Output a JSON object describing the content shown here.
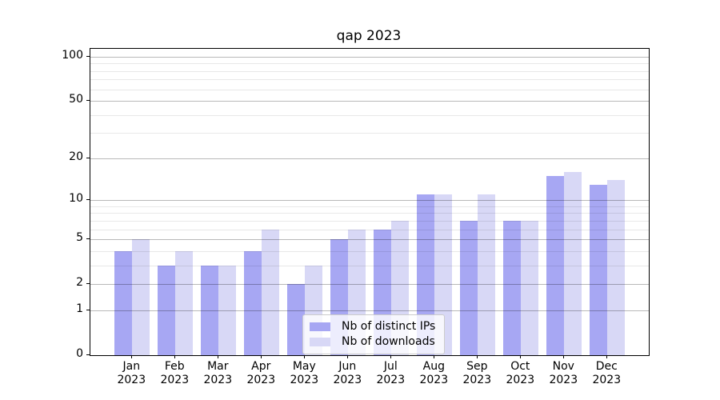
{
  "chart_data": {
    "type": "bar",
    "title": "qap 2023",
    "xlabel": "",
    "ylabel": "",
    "categories": [
      "Jan",
      "Feb",
      "Mar",
      "Apr",
      "May",
      "Jun",
      "Jul",
      "Aug",
      "Sep",
      "Oct",
      "Nov",
      "Dec"
    ],
    "category_year": "2023",
    "series": [
      {
        "name": "Nb of distinct IPs",
        "color": "#a7a7f3",
        "values": [
          4,
          3,
          3,
          4,
          2,
          5,
          6,
          11,
          7,
          7,
          15,
          13
        ]
      },
      {
        "name": "Nb of downloads",
        "color": "#d8d8f6",
        "values": [
          5,
          4,
          3,
          6,
          3,
          6,
          7,
          11,
          11,
          7,
          16,
          14
        ]
      }
    ],
    "yscale": "log1p",
    "ylim": [
      0,
      113
    ],
    "y_major_ticks": [
      0,
      1,
      2,
      5,
      10,
      20,
      50,
      100
    ],
    "y_minor_ticks": [
      3,
      4,
      6,
      7,
      8,
      9,
      30,
      40,
      60,
      70,
      80,
      90
    ],
    "grid": true,
    "grid_color_major": "rgba(0,0,0,0.28)",
    "grid_color_minor": "rgba(0,0,0,0.09)",
    "legend_position": "lower center",
    "background_color": "#ffffff"
  }
}
